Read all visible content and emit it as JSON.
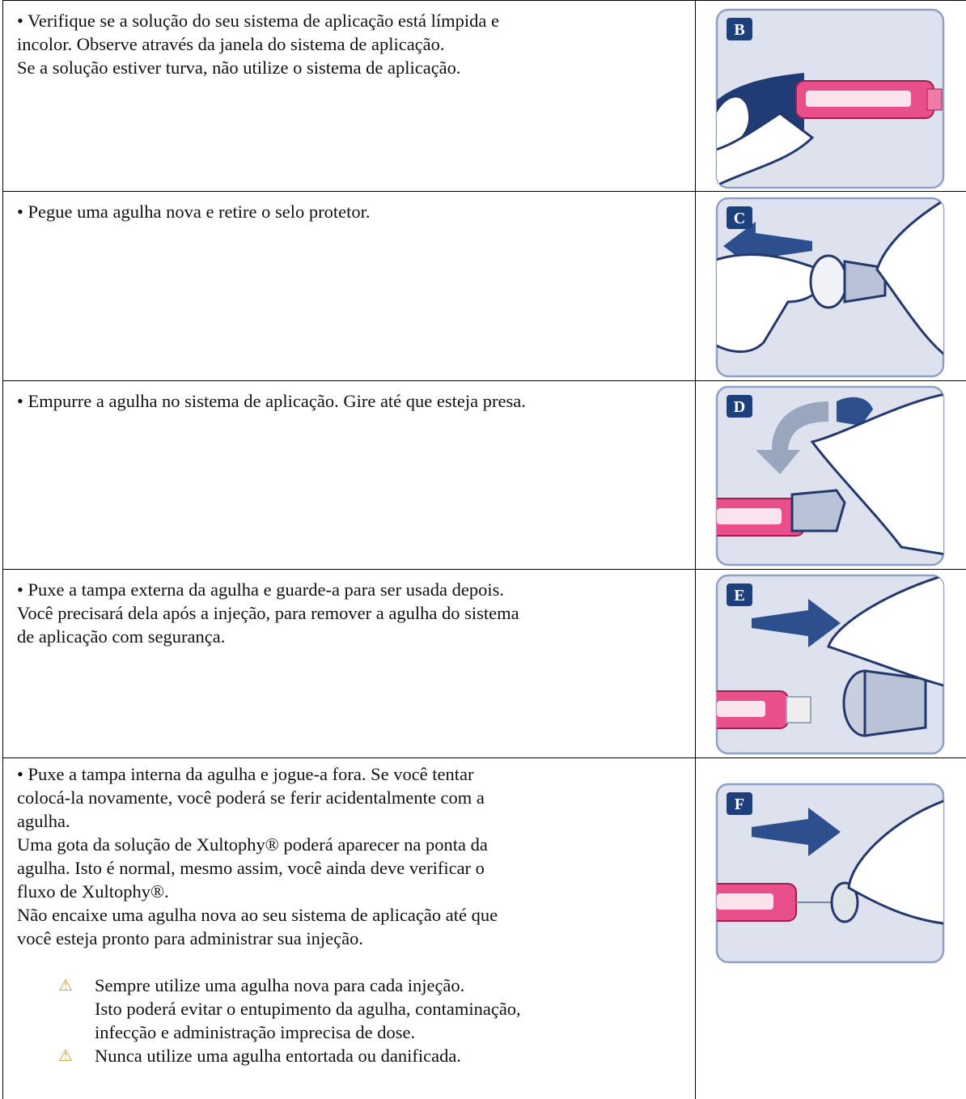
{
  "rows": [
    {
      "lines": [
        "• Verifique se a solução do seu sistema de aplicação está límpida e",
        "incolor. Observe através da janela do sistema de aplicação.",
        "Se a solução estiver turva, não utilize o sistema de aplicação."
      ],
      "figure": "B"
    },
    {
      "lines": [
        "• Pegue uma agulha nova e retire o selo protetor."
      ],
      "figure": "C"
    },
    {
      "lines": [
        "• Empurre a agulha no sistema de aplicação. Gire até que esteja presa."
      ],
      "figure": "D"
    },
    {
      "lines": [
        "• Puxe a tampa externa da agulha e guarde-a para ser usada depois.",
        "Você precisará dela após a injeção, para remover a agulha do sistema",
        "de aplicação com segurança."
      ],
      "figure": "E"
    },
    {
      "lines": [
        "• Puxe a tampa interna da agulha e jogue-a fora. Se você tentar",
        "colocá-la novamente, você poderá se ferir acidentalmente com a",
        "agulha.",
        "Uma gota da solução de Xultophy® poderá aparecer na ponta da",
        "agulha. Isto é normal, mesmo assim, você ainda deve verificar o",
        "fluxo de Xultophy®.",
        "Não encaixe uma agulha nova ao seu sistema de aplicação até que",
        "você esteja pronto para administrar sua injeção."
      ],
      "figure": "F",
      "warnings": [
        {
          "lines": [
            "Sempre utilize uma agulha nova para cada injeção.",
            "Isto poderá evitar o entupimento da agulha, contaminação,",
            "infecção e administração imprecisa de dose."
          ]
        },
        {
          "lines": [
            "Nunca utilize uma agulha entortada ou danificada."
          ]
        }
      ]
    }
  ]
}
